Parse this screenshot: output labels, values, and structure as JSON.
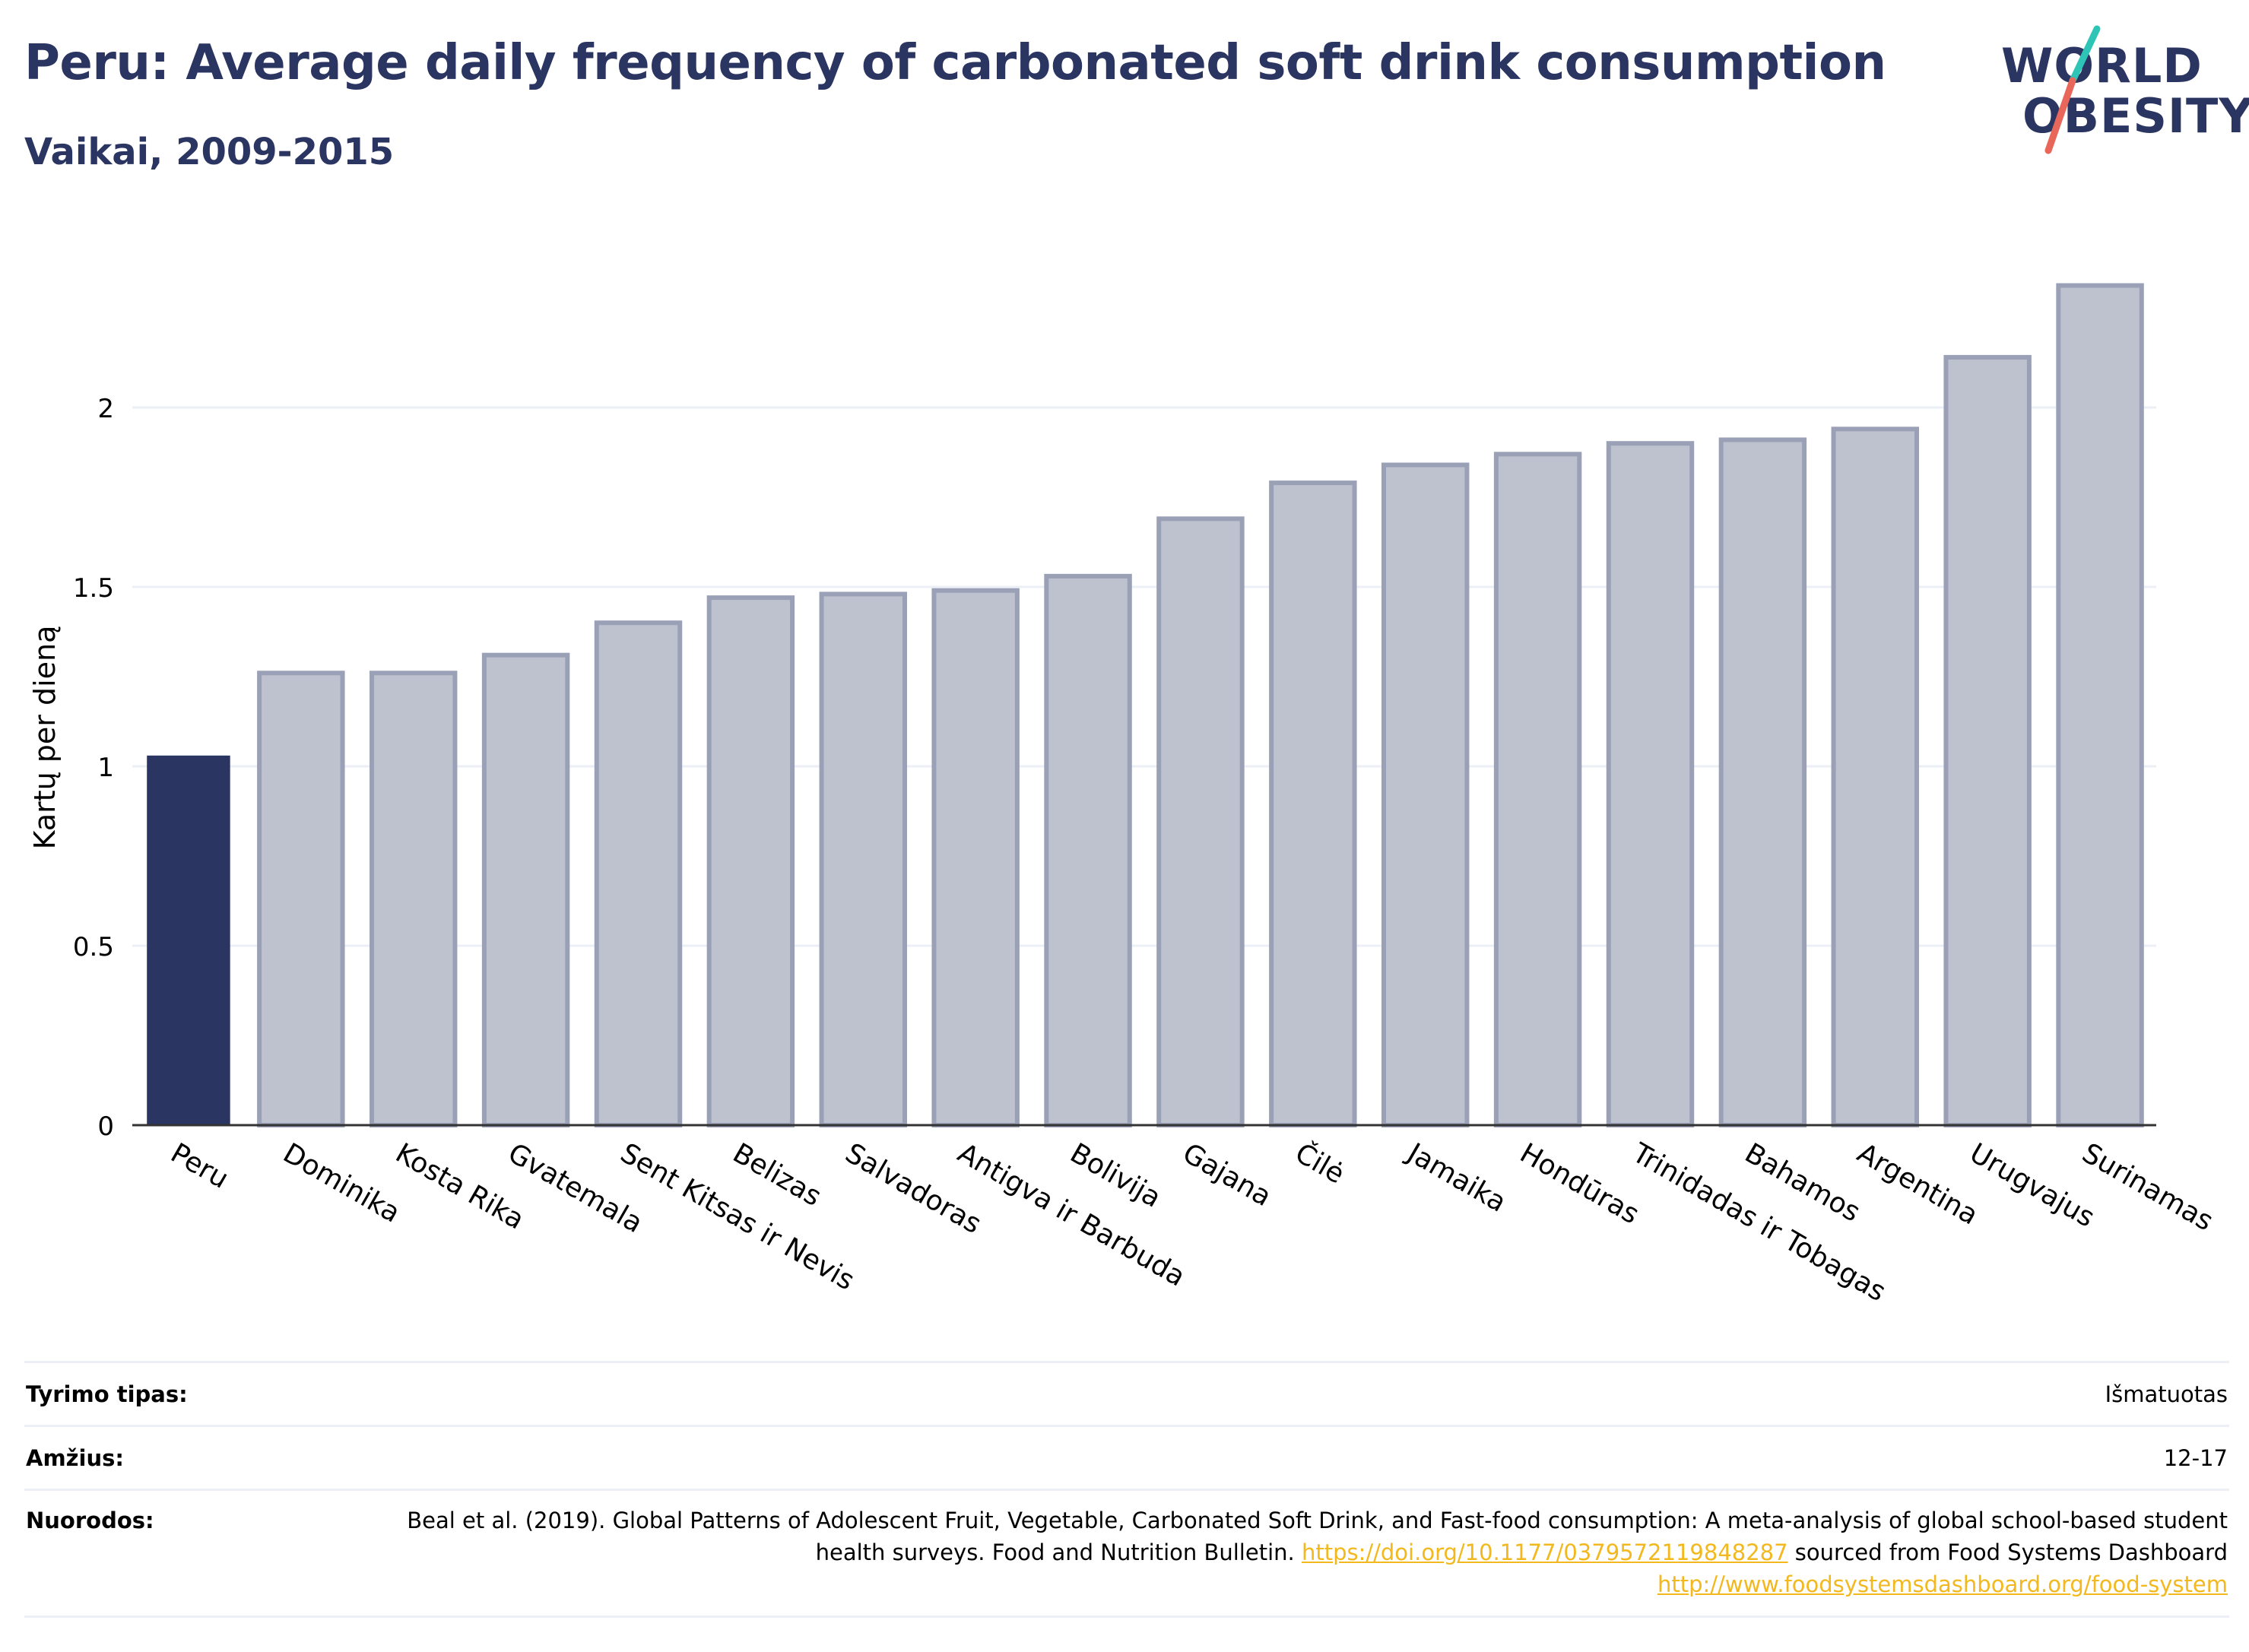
{
  "title": "Peru: Average daily frequency of carbonated soft drink consumption",
  "subtitle": "Vaikai, 2009-2015",
  "logo": {
    "line1": "WORLD",
    "line2": "OBESITY"
  },
  "colors": {
    "highlight": "#2b3561",
    "bar_fill": "#bec2cf",
    "bar_stroke": "#9aa0b6",
    "title": "#2b3561",
    "link": "#f2b81e",
    "logo_teal": "#2ec4b6",
    "logo_coral": "#e8675a"
  },
  "chart_data": {
    "type": "bar",
    "categories": [
      "Peru",
      "Dominika",
      "Kosta Rika",
      "Gvatemala",
      "Sent Kitsas ir Nevis",
      "Belizas",
      "Salvadoras",
      "Antigva ir Barbuda",
      "Bolivija",
      "Gajana",
      "Čilė",
      "Jamaika",
      "Hondūras",
      "Trinidadas ir Tobagas",
      "Bahamos",
      "Argentina",
      "Urugvajus",
      "Surinamas"
    ],
    "values": [
      1.03,
      1.26,
      1.26,
      1.31,
      1.4,
      1.47,
      1.48,
      1.49,
      1.53,
      1.69,
      1.79,
      1.84,
      1.87,
      1.9,
      1.91,
      1.94,
      2.14,
      2.34
    ],
    "highlight_index": 0,
    "title": "Peru: Average daily frequency of carbonated soft drink consumption",
    "xlabel": "",
    "ylabel": "Kartų per dieną",
    "ylim": [
      0,
      2.5
    ],
    "yticks": [
      0,
      0.5,
      1,
      1.5,
      2
    ],
    "ytick_labels": [
      "0",
      "0.5",
      "1",
      "1.5",
      "2"
    ],
    "grid": true
  },
  "meta": {
    "type_label": "Tyrimo tipas:",
    "type_value": "Išmatuotas",
    "age_label": "Amžius:",
    "age_value": "12-17",
    "ref_label": "Nuorodos:",
    "ref_text_1": "Beal et al. (2019). Global Patterns of Adolescent Fruit, Vegetable, Carbonated Soft Drink, and Fast-food consumption: A meta-analysis of global school-based student health surveys. Food and Nutrition Bulletin.",
    "ref_link_1": "https://doi.org/10.1177/0379572119848287",
    "ref_text_2": "sourced from Food Systems Dashboard",
    "ref_link_2": "http://www.foodsystemsdashboard.org/food-system"
  }
}
